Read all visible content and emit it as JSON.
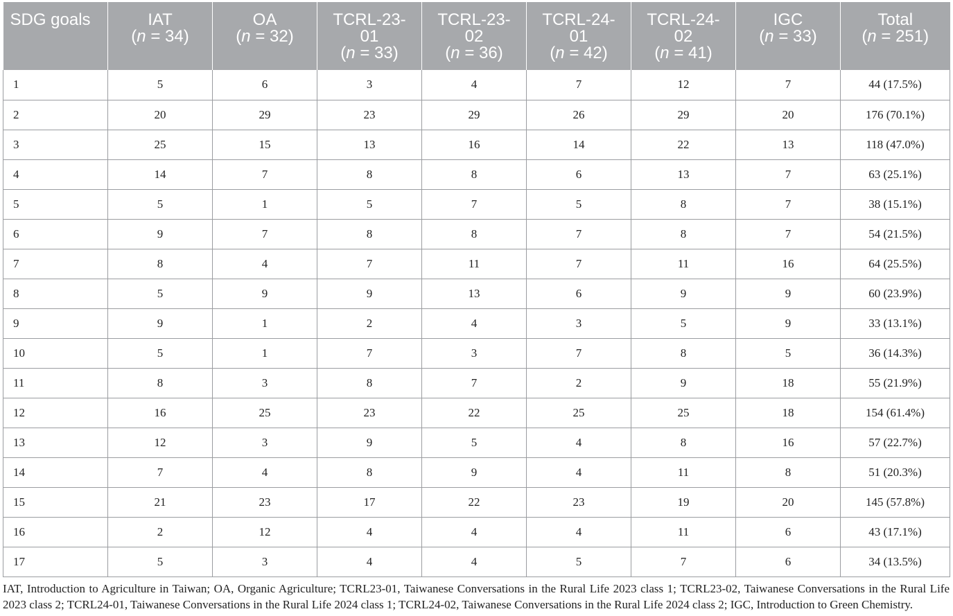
{
  "table": {
    "headers": [
      {
        "line1": "SDG goals",
        "line2": "",
        "line3": ""
      },
      {
        "line1": "IAT",
        "line2": "(n = 34)",
        "line3": ""
      },
      {
        "line1": "OA",
        "line2": "(n = 32)",
        "line3": ""
      },
      {
        "line1": "TCRL-23-",
        "line2": "01",
        "line3": "(n =  33)"
      },
      {
        "line1": "TCRL-23-",
        "line2": "02",
        "line3": "(n = 36)"
      },
      {
        "line1": "TCRL-24-",
        "line2": "01",
        "line3": "(n = 42)"
      },
      {
        "line1": "TCRL-24-",
        "line2": "02",
        "line3": "(n =  41)"
      },
      {
        "line1": "IGC",
        "line2": "(n = 33)",
        "line3": ""
      },
      {
        "line1": "Total",
        "line2": "(n = 251)",
        "line3": ""
      }
    ],
    "rows": [
      [
        "1",
        "5",
        "6",
        "3",
        "4",
        "7",
        "12",
        "7",
        "44 (17.5%)"
      ],
      [
        "2",
        "20",
        "29",
        "23",
        "29",
        "26",
        "29",
        "20",
        "176 (70.1%)"
      ],
      [
        "3",
        "25",
        "15",
        "13",
        "16",
        "14",
        "22",
        "13",
        "118 (47.0%)"
      ],
      [
        "4",
        "14",
        "7",
        "8",
        "8",
        "6",
        "13",
        "7",
        "63 (25.1%)"
      ],
      [
        "5",
        "5",
        "1",
        "5",
        "7",
        "5",
        "8",
        "7",
        "38 (15.1%)"
      ],
      [
        "6",
        "9",
        "7",
        "8",
        "8",
        "7",
        "8",
        "7",
        "54 (21.5%)"
      ],
      [
        "7",
        "8",
        "4",
        "7",
        "11",
        "7",
        "11",
        "16",
        "64 (25.5%)"
      ],
      [
        "8",
        "5",
        "9",
        "9",
        "13",
        "6",
        "9",
        "9",
        "60 (23.9%)"
      ],
      [
        "9",
        "9",
        "1",
        "2",
        "4",
        "3",
        "5",
        "9",
        "33 (13.1%)"
      ],
      [
        "10",
        "5",
        "1",
        "7",
        "3",
        "7",
        "8",
        "5",
        "36 (14.3%)"
      ],
      [
        "11",
        "8",
        "3",
        "8",
        "7",
        "2",
        "9",
        "18",
        "55 (21.9%)"
      ],
      [
        "12",
        "16",
        "25",
        "23",
        "22",
        "25",
        "25",
        "18",
        "154 (61.4%)"
      ],
      [
        "13",
        "12",
        "3",
        "9",
        "5",
        "4",
        "8",
        "16",
        "57 (22.7%)"
      ],
      [
        "14",
        "7",
        "4",
        "8",
        "9",
        "4",
        "11",
        "8",
        "51 (20.3%)"
      ],
      [
        "15",
        "21",
        "23",
        "17",
        "22",
        "23",
        "19",
        "20",
        "145 (57.8%)"
      ],
      [
        "16",
        "2",
        "12",
        "4",
        "4",
        "4",
        "11",
        "6",
        "43 (17.1%)"
      ],
      [
        "17",
        "5",
        "3",
        "4",
        "4",
        "5",
        "7",
        "6",
        "34 (13.5%)"
      ]
    ]
  },
  "footnote": "IAT, Introduction to Agriculture in Taiwan; OA, Organic Agriculture; TCRL23-01, Taiwanese Conversations in the Rural Life 2023 class 1; TCRL23-02, Taiwanese Conversations in the Rural Life 2023 class 2; TCRL24-01, Taiwanese Conversations in the Rural Life 2024 class 1; TCRL24-02, Taiwanese Conversations in the Rural Life 2024 class 2; IGC, Introduction to Green Chemistry.",
  "colors": {
    "header_bg": "#a7a9ac",
    "header_text": "#ffffff",
    "border": "#9a9ca0"
  }
}
